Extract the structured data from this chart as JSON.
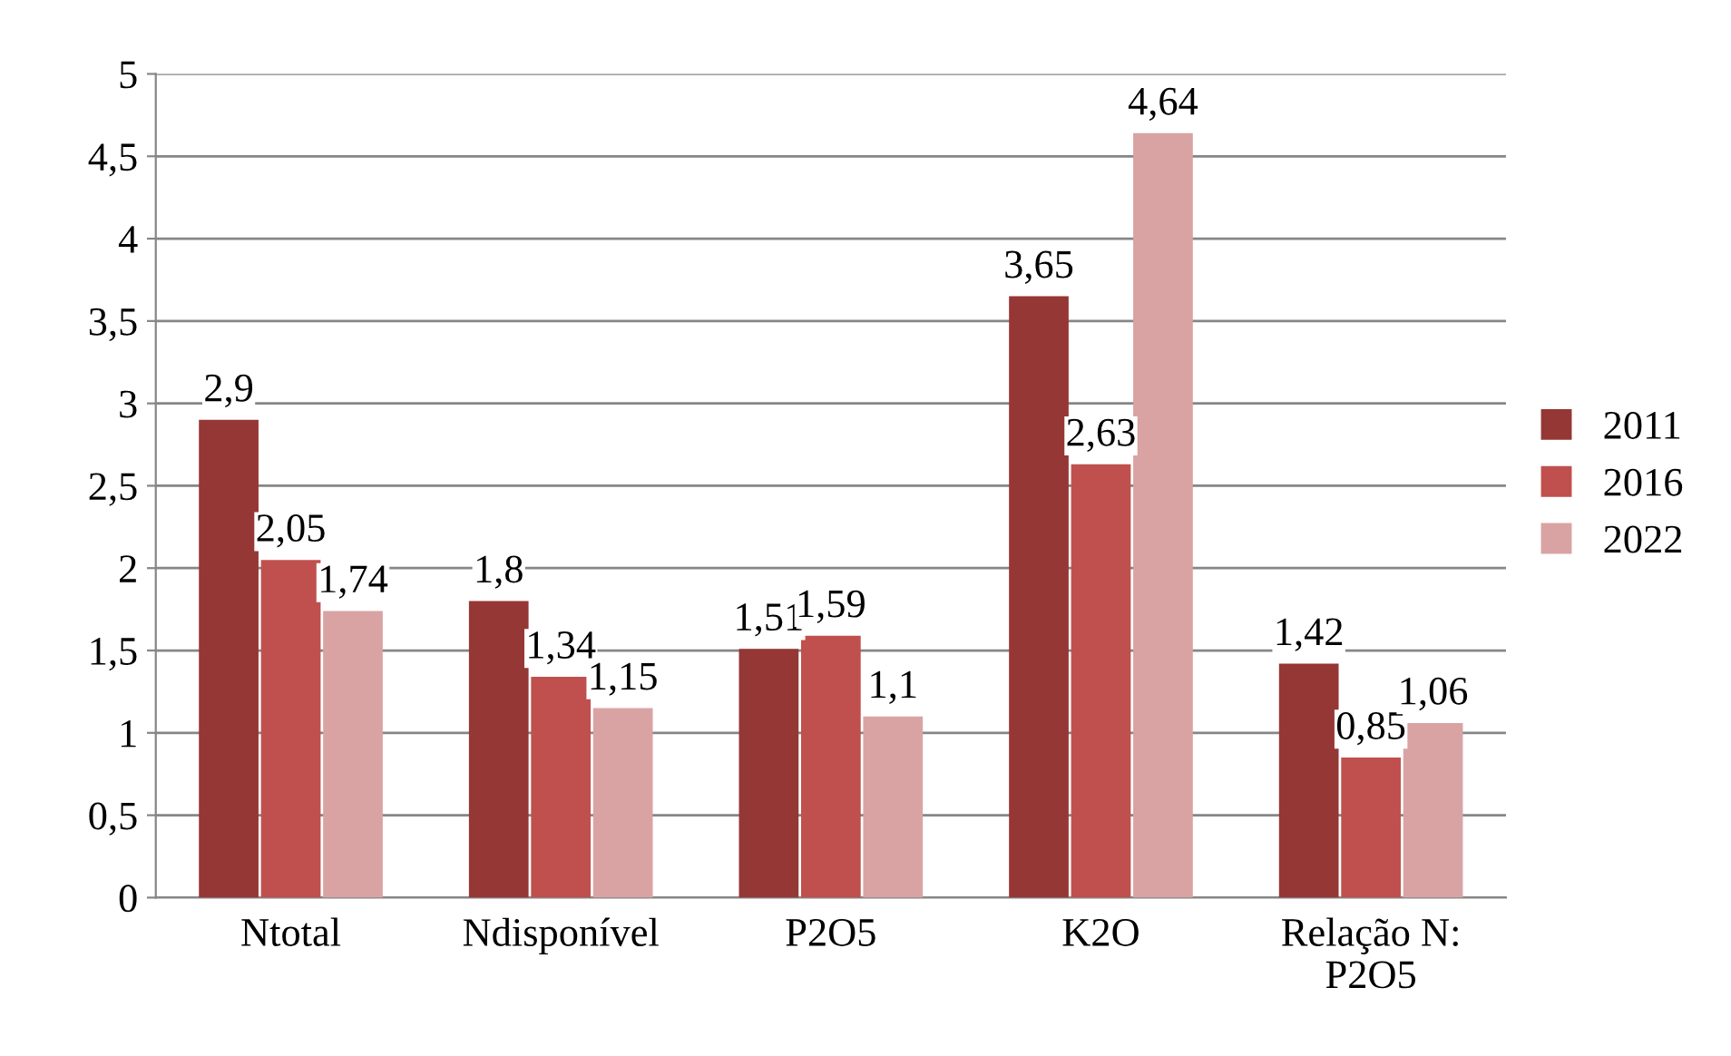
{
  "chart_data": {
    "type": "bar",
    "categories": [
      "Ntotal",
      "Ndisponível",
      "P2O5",
      "K2O",
      "Relação N:\nP2O5"
    ],
    "series": [
      {
        "name": "2011",
        "color": "#953735",
        "values": [
          2.9,
          1.8,
          1.51,
          3.65,
          1.42
        ],
        "value_labels": [
          "2,9",
          "1,8",
          "1,51",
          "3,65",
          "1,42"
        ]
      },
      {
        "name": "2016",
        "color": "#c0504d",
        "values": [
          2.05,
          1.34,
          1.59,
          2.63,
          0.85
        ],
        "value_labels": [
          "2,05",
          "1,34",
          "1,59",
          "2,63",
          "0,85"
        ]
      },
      {
        "name": "2022",
        "color": "#d9a3a3",
        "values": [
          1.74,
          1.15,
          1.1,
          4.64,
          1.06
        ],
        "value_labels": [
          "1,74",
          "1,15",
          "1,1",
          "4,64",
          "1,06"
        ]
      }
    ],
    "ylim": [
      0,
      5
    ],
    "yticks": [
      0,
      {
        "value": 0.5,
        "label": "0,5"
      },
      1,
      {
        "value": 1.5,
        "label": "1,5"
      },
      2,
      {
        "value": 2.5,
        "label": "2,5"
      },
      3,
      {
        "value": 3.5,
        "label": "3,5"
      },
      4,
      {
        "value": 4.5,
        "label": "4,5"
      },
      5
    ],
    "grid": "y",
    "legend": "right"
  }
}
